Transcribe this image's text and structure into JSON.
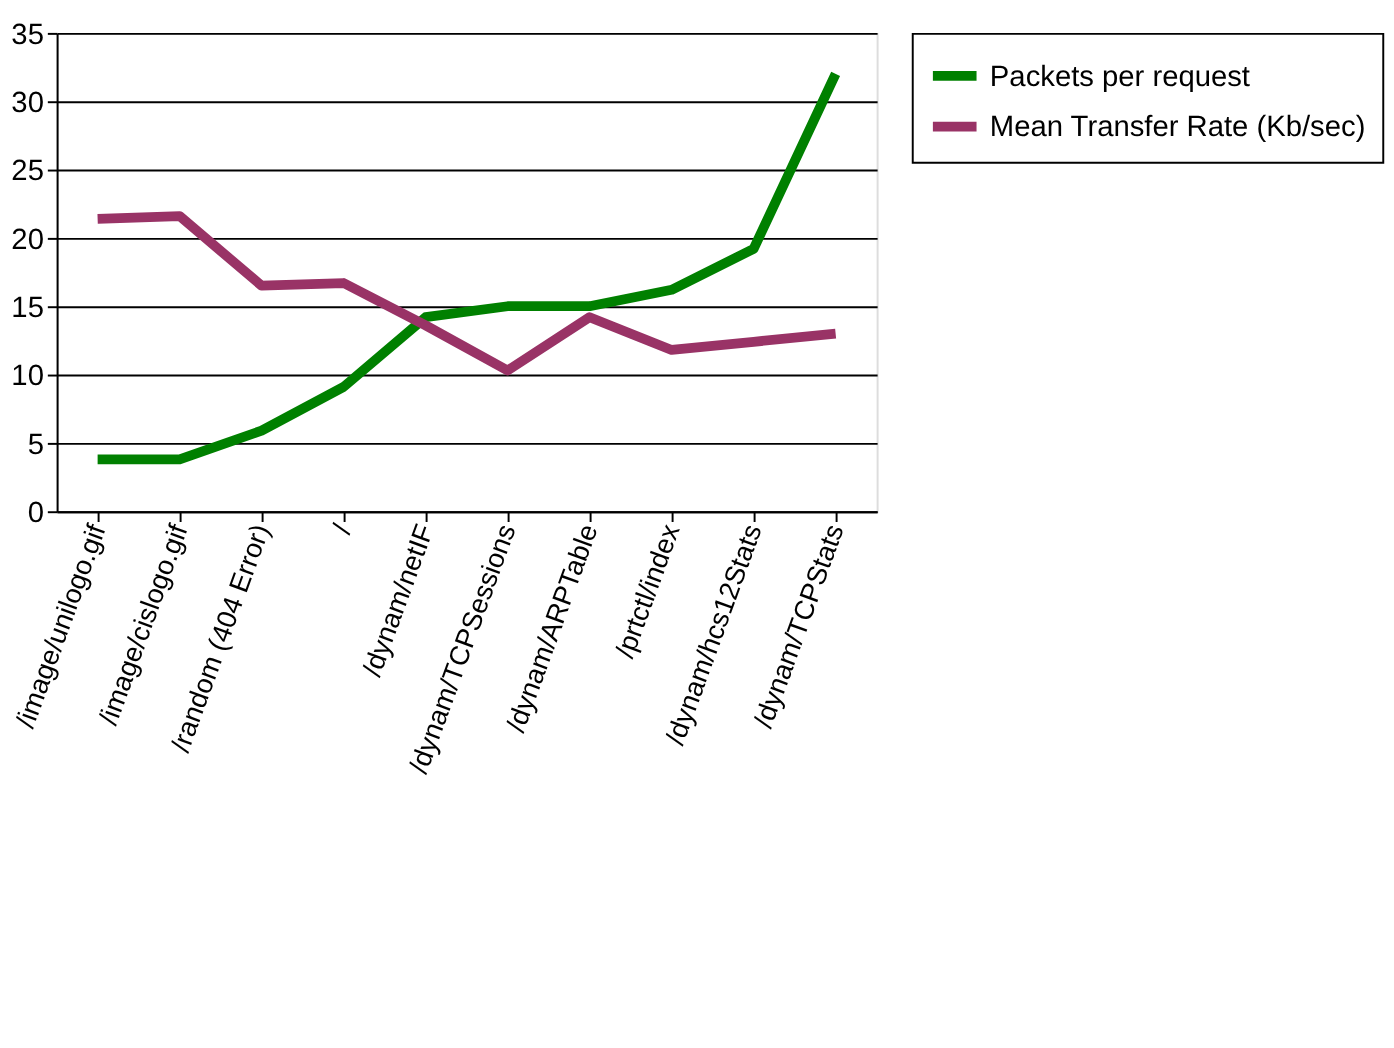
{
  "chart_data": {
    "type": "line",
    "categories": [
      "/image/unilogo.gif",
      "/image/cislogo.gif",
      "/random (404 Error)",
      "/",
      "/dynam/netIF",
      "/dynam/TCPSessions",
      "/dynam/ARPTable",
      "/prtctl/index",
      "/dynam/hcs12Stats",
      "/dynam/TCPStats"
    ],
    "series": [
      {
        "name": "Packets per request",
        "color": "#008000",
        "values": [
          3.8,
          3.8,
          5.9,
          9.1,
          14.2,
          15,
          15,
          16.2,
          19.2,
          32
        ]
      },
      {
        "name": "Mean Transfer Rate (Kb/sec)",
        "color": "#993366",
        "values": [
          21.4,
          21.6,
          16.5,
          16.7,
          13.6,
          10.3,
          14.2,
          11.8,
          12.4,
          13.0
        ]
      }
    ],
    "ylim": [
      0,
      35
    ],
    "yticks": [
      0,
      5,
      10,
      15,
      20,
      25,
      30,
      35
    ],
    "grid": "y",
    "legend": "right",
    "marker": "none",
    "line_style": "solid"
  }
}
